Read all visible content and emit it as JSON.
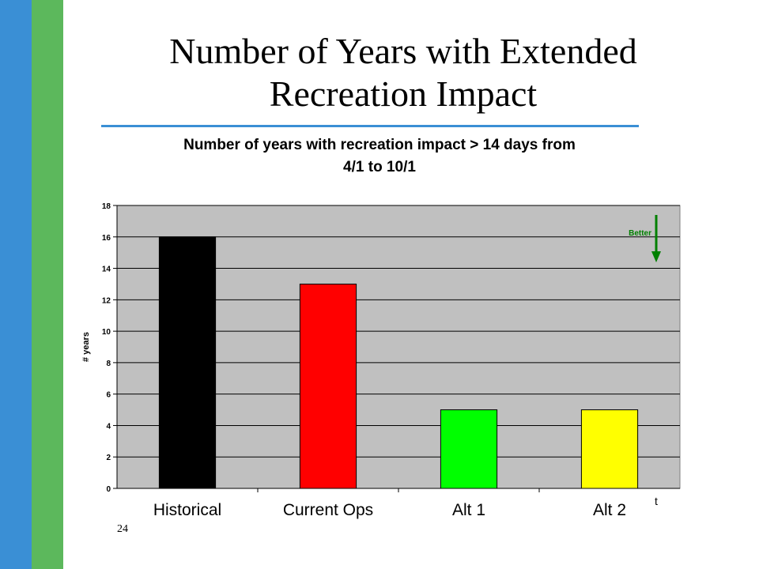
{
  "slide": {
    "title_line1": "Number of Years with Extended",
    "title_line2": "Recreation Impact",
    "slide_number": "24",
    "stray_mark": "t",
    "colors": {
      "stripe_blue": "#3a8fd5",
      "stripe_green": "#5cb85c",
      "rule": "#3a8fd5"
    }
  },
  "chart_data": {
    "type": "bar",
    "title_line1": "Number of years with recreation impact > 14 days from",
    "title_line2": "4/1 to 10/1",
    "categories": [
      "Historical",
      "Current Ops",
      "Alt 1",
      "Alt 2"
    ],
    "values": [
      16,
      13,
      5,
      5
    ],
    "bar_colors": [
      "#000000",
      "#ff0000",
      "#00ff00",
      "#ffff00"
    ],
    "xlabel": "",
    "ylabel": "# years",
    "ylim": [
      0,
      18
    ],
    "yticks": [
      0,
      2,
      4,
      6,
      8,
      10,
      12,
      14,
      16,
      18
    ],
    "grid": true,
    "plot_background": "#c0c0c0",
    "annotation": {
      "text": "Better",
      "color": "#008000",
      "arrow": "down"
    }
  }
}
